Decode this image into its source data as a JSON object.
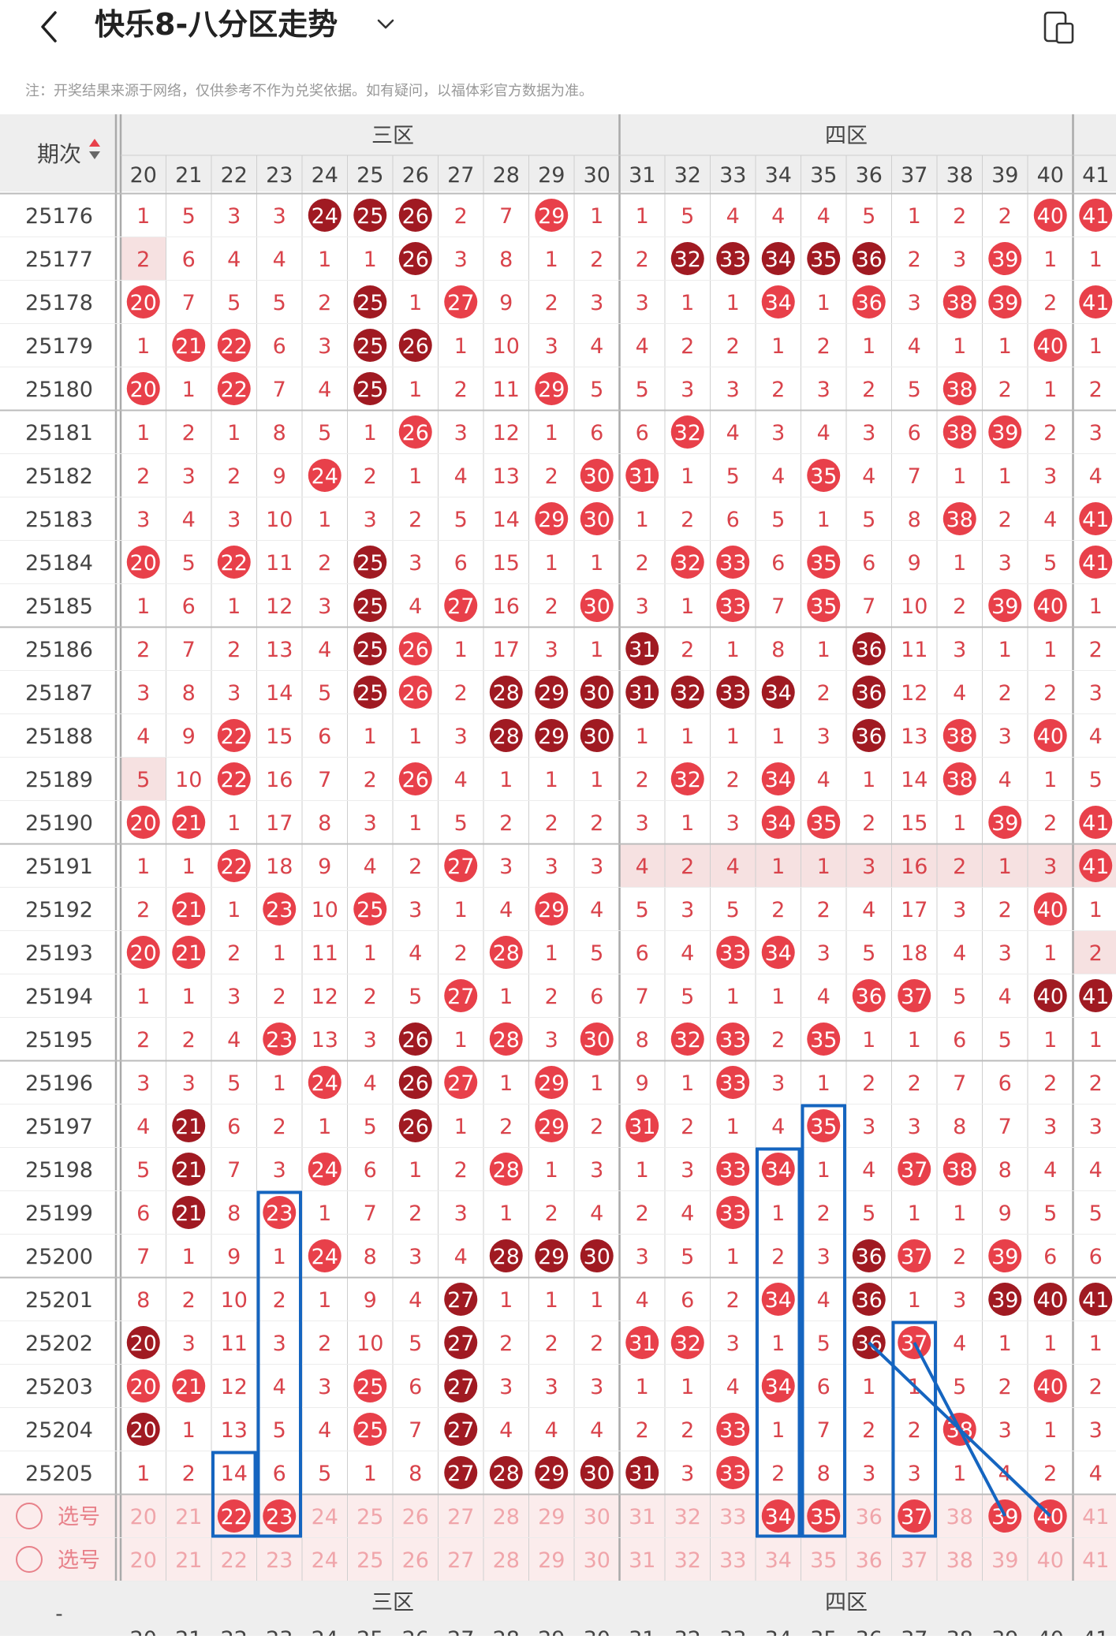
{
  "header": {
    "title": "快乐8-八分区走势",
    "notice": "注：开奖结果来源于网络，仅供参考不作为兑奖依据。如有疑问，以福体彩官方数据为准。"
  },
  "table": {
    "period_header": "期次",
    "zone_labels": [
      "三区",
      "四区"
    ],
    "bottom_left_label": "-",
    "select_label": "选号",
    "columns": [
      20,
      21,
      22,
      23,
      24,
      25,
      26,
      27,
      28,
      29,
      30,
      31,
      32,
      33,
      34,
      35,
      36,
      37,
      38,
      39,
      40,
      41
    ],
    "rows": [
      {
        "p": "25176",
        "v": [
          1,
          5,
          3,
          3,
          24,
          25,
          26,
          2,
          7,
          29,
          1,
          1,
          5,
          4,
          4,
          4,
          5,
          1,
          2,
          2,
          40,
          41
        ]
      },
      {
        "p": "25177",
        "v": [
          2,
          6,
          4,
          4,
          1,
          1,
          26,
          3,
          8,
          1,
          2,
          2,
          32,
          33,
          34,
          35,
          36,
          2,
          3,
          39,
          1,
          1
        ]
      },
      {
        "p": "25178",
        "v": [
          20,
          7,
          5,
          5,
          2,
          25,
          1,
          27,
          9,
          2,
          3,
          3,
          1,
          1,
          34,
          1,
          36,
          3,
          38,
          39,
          2,
          41
        ]
      },
      {
        "p": "25179",
        "v": [
          1,
          21,
          22,
          6,
          3,
          25,
          26,
          1,
          10,
          3,
          4,
          4,
          2,
          2,
          1,
          2,
          1,
          4,
          1,
          1,
          40,
          1
        ]
      },
      {
        "p": "25180",
        "v": [
          20,
          1,
          22,
          7,
          4,
          25,
          1,
          2,
          11,
          29,
          5,
          5,
          3,
          3,
          2,
          3,
          2,
          5,
          38,
          2,
          1,
          2
        ]
      },
      {
        "p": "25181",
        "v": [
          1,
          2,
          1,
          8,
          5,
          1,
          26,
          3,
          12,
          1,
          6,
          6,
          32,
          4,
          3,
          4,
          3,
          6,
          38,
          39,
          2,
          3
        ]
      },
      {
        "p": "25182",
        "v": [
          2,
          3,
          2,
          9,
          24,
          2,
          1,
          4,
          13,
          2,
          30,
          31,
          1,
          5,
          4,
          35,
          4,
          7,
          1,
          1,
          3,
          4
        ]
      },
      {
        "p": "25183",
        "v": [
          3,
          4,
          3,
          10,
          1,
          3,
          2,
          5,
          14,
          29,
          30,
          1,
          2,
          6,
          5,
          1,
          5,
          8,
          38,
          2,
          4,
          41
        ]
      },
      {
        "p": "25184",
        "v": [
          20,
          5,
          22,
          11,
          2,
          25,
          3,
          6,
          15,
          1,
          1,
          2,
          32,
          33,
          6,
          35,
          6,
          9,
          1,
          3,
          5,
          41
        ]
      },
      {
        "p": "25185",
        "v": [
          1,
          6,
          1,
          12,
          3,
          25,
          4,
          27,
          16,
          2,
          30,
          3,
          1,
          33,
          7,
          35,
          7,
          10,
          2,
          39,
          40,
          1
        ]
      },
      {
        "p": "25186",
        "v": [
          2,
          7,
          2,
          13,
          4,
          25,
          26,
          1,
          17,
          3,
          1,
          31,
          2,
          1,
          8,
          1,
          36,
          11,
          3,
          1,
          1,
          2
        ]
      },
      {
        "p": "25187",
        "v": [
          3,
          8,
          3,
          14,
          5,
          25,
          26,
          2,
          28,
          29,
          30,
          31,
          32,
          33,
          34,
          2,
          36,
          12,
          4,
          2,
          2,
          3
        ]
      },
      {
        "p": "25188",
        "v": [
          4,
          9,
          22,
          15,
          6,
          1,
          1,
          3,
          28,
          29,
          30,
          1,
          1,
          1,
          1,
          3,
          36,
          13,
          38,
          3,
          40,
          4
        ]
      },
      {
        "p": "25189",
        "v": [
          5,
          10,
          22,
          16,
          7,
          2,
          26,
          4,
          1,
          1,
          1,
          2,
          32,
          2,
          34,
          4,
          1,
          14,
          38,
          4,
          1,
          5
        ]
      },
      {
        "p": "25190",
        "v": [
          20,
          21,
          1,
          17,
          8,
          3,
          1,
          5,
          2,
          2,
          2,
          3,
          1,
          3,
          34,
          35,
          2,
          15,
          1,
          39,
          2,
          41
        ]
      },
      {
        "p": "25191",
        "v": [
          1,
          1,
          22,
          18,
          9,
          4,
          2,
          27,
          3,
          3,
          3,
          4,
          2,
          4,
          1,
          1,
          3,
          16,
          2,
          1,
          3,
          41
        ]
      },
      {
        "p": "25192",
        "v": [
          2,
          21,
          1,
          23,
          10,
          25,
          3,
          1,
          4,
          29,
          4,
          5,
          3,
          5,
          2,
          2,
          4,
          17,
          3,
          2,
          40,
          1
        ]
      },
      {
        "p": "25193",
        "v": [
          20,
          21,
          2,
          1,
          11,
          1,
          4,
          2,
          28,
          1,
          5,
          6,
          4,
          33,
          34,
          3,
          5,
          18,
          4,
          3,
          1,
          2
        ]
      },
      {
        "p": "25194",
        "v": [
          1,
          1,
          3,
          2,
          12,
          2,
          5,
          27,
          1,
          2,
          6,
          7,
          5,
          1,
          1,
          4,
          36,
          37,
          5,
          4,
          40,
          41
        ]
      },
      {
        "p": "25195",
        "v": [
          2,
          2,
          4,
          23,
          13,
          3,
          26,
          1,
          28,
          3,
          30,
          8,
          32,
          33,
          2,
          35,
          1,
          1,
          6,
          5,
          1,
          1
        ]
      },
      {
        "p": "25196",
        "v": [
          3,
          3,
          5,
          1,
          24,
          4,
          26,
          27,
          1,
          29,
          1,
          9,
          1,
          33,
          3,
          1,
          2,
          2,
          7,
          6,
          2,
          2
        ]
      },
      {
        "p": "25197",
        "v": [
          4,
          21,
          6,
          2,
          1,
          5,
          26,
          1,
          2,
          29,
          2,
          31,
          2,
          1,
          4,
          35,
          3,
          3,
          8,
          7,
          3,
          3
        ]
      },
      {
        "p": "25198",
        "v": [
          5,
          21,
          7,
          3,
          24,
          6,
          1,
          2,
          28,
          1,
          3,
          1,
          3,
          33,
          34,
          1,
          4,
          37,
          38,
          8,
          4,
          4
        ]
      },
      {
        "p": "25199",
        "v": [
          6,
          21,
          8,
          23,
          1,
          7,
          2,
          3,
          1,
          2,
          4,
          2,
          4,
          33,
          1,
          2,
          5,
          1,
          1,
          9,
          5,
          5
        ]
      },
      {
        "p": "25200",
        "v": [
          7,
          1,
          9,
          1,
          24,
          8,
          3,
          4,
          28,
          29,
          30,
          3,
          5,
          1,
          2,
          3,
          36,
          37,
          2,
          39,
          6,
          6
        ]
      },
      {
        "p": "25201",
        "v": [
          8,
          2,
          10,
          2,
          1,
          9,
          4,
          27,
          1,
          1,
          1,
          4,
          6,
          2,
          34,
          4,
          36,
          1,
          3,
          39,
          40,
          41
        ]
      },
      {
        "p": "25202",
        "v": [
          20,
          3,
          11,
          3,
          2,
          10,
          5,
          27,
          2,
          2,
          2,
          31,
          32,
          3,
          1,
          5,
          36,
          37,
          4,
          1,
          1,
          1
        ]
      },
      {
        "p": "25203",
        "v": [
          20,
          21,
          12,
          4,
          3,
          25,
          6,
          27,
          3,
          3,
          3,
          1,
          1,
          4,
          34,
          6,
          1,
          1,
          5,
          2,
          40,
          2
        ]
      },
      {
        "p": "25204",
        "v": [
          20,
          1,
          13,
          5,
          4,
          25,
          7,
          27,
          4,
          4,
          4,
          2,
          2,
          33,
          1,
          7,
          2,
          2,
          38,
          3,
          1,
          3
        ]
      },
      {
        "p": "25205",
        "v": [
          1,
          2,
          14,
          6,
          5,
          1,
          8,
          27,
          28,
          29,
          30,
          31,
          3,
          33,
          2,
          8,
          3,
          3,
          1,
          4,
          2,
          4
        ]
      }
    ],
    "dark_hits": [
      "25176-24",
      "25176-25",
      "25176-26",
      "25177-26",
      "25177-32",
      "25177-33",
      "25177-34",
      "25177-35",
      "25177-36",
      "25178-25",
      "25179-25",
      "25179-26",
      "25180-25",
      "25184-25",
      "25185-25",
      "25186-25",
      "25186-31",
      "25186-36",
      "25187-25",
      "25187-28",
      "25187-29",
      "25187-30",
      "25187-31",
      "25187-32",
      "25187-33",
      "25187-34",
      "25187-36",
      "25188-28",
      "25188-29",
      "25188-30",
      "25188-36",
      "25194-40",
      "25194-41",
      "25195-26",
      "25196-26",
      "25197-21",
      "25197-26",
      "25198-21",
      "25199-21",
      "25200-28",
      "25200-29",
      "25200-30",
      "25200-36",
      "25201-27",
      "25201-36",
      "25201-39",
      "25201-40",
      "25201-41",
      "25202-20",
      "25202-27",
      "25202-36",
      "25203-27",
      "25204-20",
      "25204-27",
      "25205-27",
      "25205-28",
      "25205-29",
      "25205-30",
      "25205-31"
    ],
    "shaded_cells": [
      "25177-20",
      "25189-20",
      "25193-41"
    ],
    "shaded_ranges": [
      {
        "row": "25191",
        "from": 31,
        "to": 41
      }
    ],
    "selected": [
      22,
      23,
      34,
      35,
      37,
      39,
      40
    ],
    "colors": {
      "hit_light": "#e8404a",
      "hit_dark": "#a01a22",
      "miss_text": "#d9434b",
      "period_text": "#444444",
      "header_bg": "#eeeeee",
      "grid": "#cfcfcf",
      "shade": "#f6e1e1",
      "select_bg": "#fbecec",
      "annot": "#1565c0"
    }
  }
}
